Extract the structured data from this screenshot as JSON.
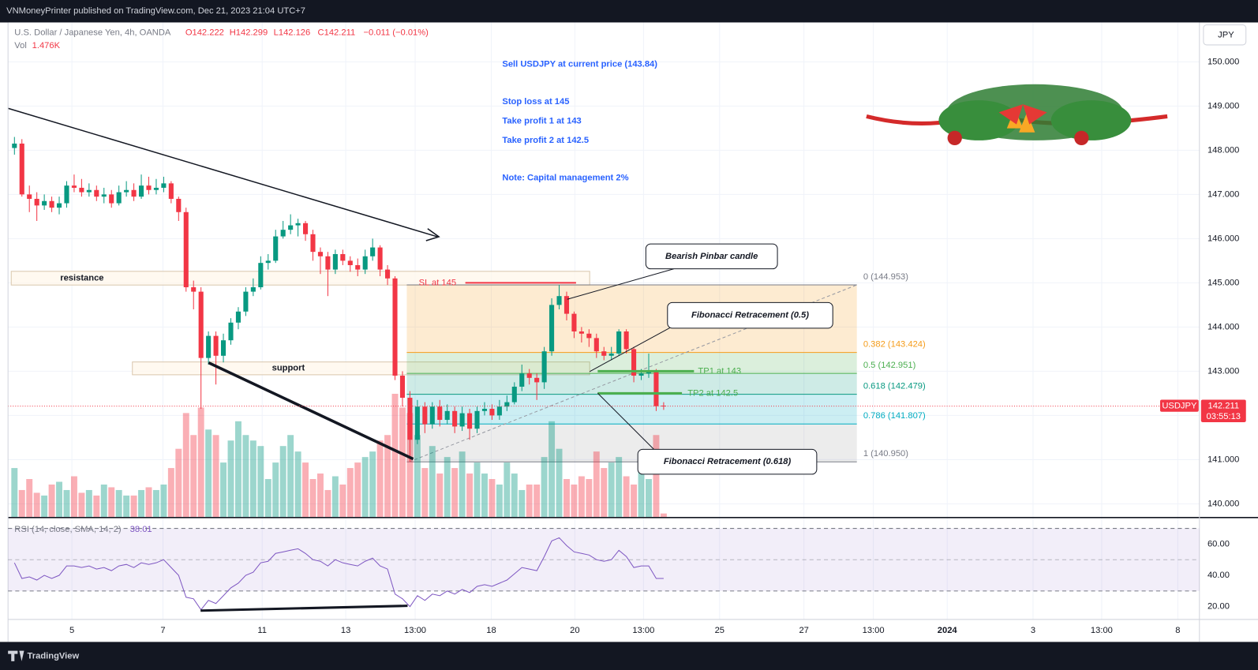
{
  "header": {
    "publisher": "VNMoneyPrinter published on TradingView.com, Dec 21, 2023 21:04 UTC+7"
  },
  "footer": {
    "brand": "TradingView"
  },
  "chart_data": {
    "type": "candlestick",
    "symbol_line": "U.S. Dollar / Japanese Yen, 4h, OANDA",
    "ohlc_labels": [
      "O142.222",
      "H142.299",
      "L142.126",
      "C142.211",
      "−0.011 (−0.01%)"
    ],
    "volume_title": "Vol",
    "currency": "JPY",
    "up_color": "#089981",
    "down_color": "#f23645",
    "grid": true,
    "ylim": [
      139.69,
      150.89
    ],
    "yticks": [
      {
        "value": 140,
        "label": "140.000"
      },
      {
        "value": 141,
        "label": "141.000"
      },
      {
        "value": 142,
        "label": "142.000"
      },
      {
        "value": 143,
        "label": "143.000"
      },
      {
        "value": 144,
        "label": "144.000"
      },
      {
        "value": 145,
        "label": "145.000"
      },
      {
        "value": 146,
        "label": "146.000"
      },
      {
        "value": 147,
        "label": "147.000"
      },
      {
        "value": 148,
        "label": "148.000"
      },
      {
        "value": 149,
        "label": "149.000"
      },
      {
        "value": 150,
        "label": "150.000"
      }
    ],
    "xlim": [
      -0.86,
      158.8
    ],
    "xticks": [
      {
        "value": 7.7,
        "label": "5"
      },
      {
        "value": 19.9,
        "label": "7"
      },
      {
        "value": 33.2,
        "label": "11"
      },
      {
        "value": 44.4,
        "label": "13"
      },
      {
        "value": 53.7,
        "label": "13:00"
      },
      {
        "value": 63.9,
        "label": "18"
      },
      {
        "value": 75.1,
        "label": "20"
      },
      {
        "value": 84.3,
        "label": "13:00"
      },
      {
        "value": 94.5,
        "label": "25"
      },
      {
        "value": 105.8,
        "label": "27"
      },
      {
        "value": 115.1,
        "label": "13:00"
      },
      {
        "value": 125,
        "label": "2024"
      },
      {
        "value": 136.5,
        "label": "3"
      },
      {
        "value": 145.7,
        "label": "13:00"
      },
      {
        "value": 155.9,
        "label": "8"
      }
    ],
    "candles": {
      "open": [
        148.05,
        148.15,
        147.0,
        146.9,
        146.75,
        146.85,
        146.7,
        146.8,
        147.2,
        147.15,
        147.05,
        147.1,
        146.95,
        147.0,
        146.8,
        147.05,
        147.1,
        146.95,
        147.2,
        147.1,
        147.15,
        147.25,
        146.9,
        146.6,
        144.9,
        144.8,
        143.3,
        143.8,
        143.35,
        143.7,
        144.1,
        144.35,
        144.8,
        144.9,
        145.45,
        145.5,
        146.05,
        146.2,
        146.3,
        146.35,
        146.1,
        145.7,
        145.6,
        145.3,
        145.65,
        145.5,
        145.4,
        145.3,
        145.6,
        145.8,
        145.3,
        145.1,
        142.9,
        142.4,
        141.45,
        142.2,
        141.8,
        142.2,
        141.9,
        142.1,
        141.75,
        142.05,
        141.7,
        142.1,
        142.15,
        142.0,
        142.2,
        142.3,
        142.65,
        142.95,
        142.85,
        142.75,
        143.45,
        144.5,
        144.7,
        144.3,
        143.9,
        143.85,
        143.75,
        143.45,
        143.35,
        143.4,
        143.9,
        143.5,
        142.9,
        142.95,
        143.0,
        142.222
      ],
      "high": [
        148.3,
        148.25,
        147.2,
        147.05,
        147.0,
        146.95,
        146.95,
        147.3,
        147.45,
        147.35,
        147.25,
        147.2,
        147.15,
        147.1,
        147.2,
        147.3,
        147.25,
        147.45,
        147.4,
        147.35,
        147.4,
        147.3,
        146.95,
        146.7,
        145.05,
        144.9,
        143.9,
        143.9,
        143.85,
        144.2,
        144.45,
        144.9,
        145.1,
        145.6,
        145.65,
        146.2,
        146.4,
        146.55,
        146.45,
        146.4,
        146.2,
        145.8,
        145.7,
        145.75,
        145.75,
        145.6,
        145.55,
        145.75,
        146.0,
        145.85,
        145.4,
        145.15,
        143.0,
        142.55,
        142.35,
        142.3,
        142.3,
        142.35,
        142.25,
        142.2,
        142.2,
        142.15,
        142.2,
        142.3,
        142.25,
        142.35,
        142.45,
        142.75,
        143.15,
        143.05,
        142.95,
        143.55,
        144.65,
        144.95,
        144.8,
        144.35,
        144.0,
        143.95,
        143.85,
        143.55,
        143.55,
        143.95,
        143.95,
        143.55,
        143.05,
        143.4,
        143.05,
        142.299
      ],
      "low": [
        147.9,
        146.95,
        146.6,
        146.4,
        146.65,
        146.6,
        146.55,
        146.7,
        147.05,
        146.95,
        146.95,
        146.85,
        146.8,
        146.7,
        146.75,
        146.95,
        146.85,
        146.9,
        147.0,
        147.0,
        147.05,
        146.8,
        146.4,
        144.8,
        144.4,
        142.15,
        143.15,
        142.7,
        143.2,
        143.6,
        143.95,
        144.25,
        144.7,
        144.85,
        145.3,
        145.45,
        146.0,
        146.1,
        146.05,
        145.95,
        145.5,
        145.2,
        144.7,
        145.2,
        145.4,
        145.25,
        145.15,
        145.2,
        145.5,
        145.15,
        144.95,
        142.8,
        142.2,
        140.95,
        141.35,
        141.6,
        141.7,
        141.75,
        141.8,
        141.6,
        141.65,
        141.45,
        141.6,
        142.0,
        141.9,
        141.9,
        142.1,
        142.25,
        142.55,
        142.7,
        142.35,
        142.6,
        143.35,
        144.4,
        144.15,
        143.75,
        143.65,
        143.55,
        143.3,
        143.25,
        143.25,
        143.35,
        143.4,
        142.75,
        142.8,
        142.85,
        142.1,
        142.126
      ],
      "close": [
        148.15,
        147.0,
        146.9,
        146.75,
        146.85,
        146.7,
        146.8,
        147.2,
        147.15,
        147.05,
        147.1,
        146.95,
        147.0,
        146.8,
        147.05,
        147.1,
        146.95,
        147.2,
        147.1,
        147.15,
        147.25,
        146.9,
        146.6,
        144.9,
        144.8,
        143.3,
        143.8,
        143.35,
        143.7,
        144.1,
        144.35,
        144.8,
        144.9,
        145.45,
        145.5,
        146.05,
        146.2,
        146.3,
        146.35,
        146.1,
        145.7,
        145.6,
        145.3,
        145.65,
        145.5,
        145.4,
        145.3,
        145.6,
        145.8,
        145.3,
        145.1,
        142.9,
        142.4,
        141.45,
        142.2,
        141.8,
        142.2,
        141.9,
        142.1,
        141.75,
        142.05,
        141.7,
        142.1,
        142.15,
        142.0,
        142.2,
        142.3,
        142.65,
        142.95,
        142.85,
        142.75,
        143.45,
        144.5,
        144.7,
        144.3,
        143.9,
        143.85,
        143.75,
        143.45,
        143.35,
        143.4,
        143.9,
        143.5,
        142.9,
        142.95,
        143.0,
        142.21,
        142.211
      ],
      "volume": [
        18,
        10,
        14,
        9,
        8,
        12,
        13,
        10,
        15,
        9,
        10,
        8,
        12,
        11,
        10,
        8,
        8,
        10,
        11,
        10,
        12,
        18,
        25,
        38,
        30,
        40,
        32,
        30,
        20,
        28,
        35,
        30,
        28,
        26,
        14,
        20,
        26,
        30,
        24,
        20,
        14,
        16,
        10,
        15,
        12,
        18,
        20,
        22,
        24,
        28,
        30,
        45,
        40,
        38,
        30,
        18,
        26,
        16,
        22,
        18,
        24,
        16,
        20,
        16,
        14,
        12,
        20,
        16,
        10,
        12,
        12,
        22,
        35,
        25,
        14,
        12,
        15,
        14,
        24,
        18,
        20,
        22,
        15,
        12,
        18,
        14,
        30,
        1.476
      ],
      "volume_value_labels": {
        "87": "1.476K"
      }
    },
    "last_price": {
      "symbol": "USDJPY",
      "value": 142.211,
      "label": "142.211",
      "countdown": "03:55:13"
    },
    "fibonacci": [
      {
        "ratio": 0,
        "price": 144.953,
        "label": "0 (144.953)",
        "color": "#787b86"
      },
      {
        "ratio": 0.382,
        "price": 143.424,
        "label": "0.382 (143.424)",
        "color": "#f59c1a"
      },
      {
        "ratio": 0.5,
        "price": 142.951,
        "label": "0.5 (142.951)",
        "color": "#4caf50"
      },
      {
        "ratio": 0.618,
        "price": 142.479,
        "label": "0.618 (142.479)",
        "color": "#089981"
      },
      {
        "ratio": 0.786,
        "price": 141.807,
        "label": "0.786 (141.807)",
        "color": "#00acc1"
      },
      {
        "ratio": 1,
        "price": 140.95,
        "label": "1 (140.950)",
        "color": "#787b86"
      }
    ],
    "levels": [
      {
        "label": "SL at 145",
        "price": 145,
        "color": "#f23645"
      },
      {
        "label": "TP1 at 143",
        "price": 143,
        "color": "#4caf50"
      },
      {
        "label": "TP2 at 142.5",
        "price": 142.5,
        "color": "#4caf50"
      }
    ],
    "zones": [
      {
        "label": "resistance",
        "top": 145.26,
        "bottom": 144.95
      },
      {
        "label": "support",
        "top": 143.21,
        "bottom": 142.92
      }
    ],
    "trade_plan": [
      "Sell USDJPY at current price (143.84)",
      "Stop loss at 145",
      "Take profit 1 at 143",
      "Take profit 2 at 142.5",
      "Note: Capital management 2%"
    ],
    "callouts": [
      "Bearish Pinbar candle",
      "Fibonacci Retracement (0.5)",
      "Fibonacci Retracement (0.618)"
    ],
    "rsi": {
      "title": "RSI (14, close, SMA, 14, 2)",
      "ylim": [
        11.8,
        75.4
      ],
      "band": [
        30,
        70
      ],
      "midline": 50,
      "color": "#7e57c2",
      "yticks": [
        {
          "value": 20,
          "label": "20.00"
        },
        {
          "value": 40,
          "label": "40.00"
        },
        {
          "value": 60,
          "label": "60.00"
        }
      ],
      "values": [
        48,
        38,
        39,
        37,
        40,
        38,
        40,
        46,
        46,
        45,
        46,
        44,
        45,
        43,
        46,
        47,
        45,
        48,
        47,
        48,
        50,
        45,
        40,
        26,
        25,
        18,
        24,
        22,
        27,
        32,
        35,
        40,
        42,
        48,
        49,
        54,
        55,
        56,
        57,
        54,
        50,
        49,
        46,
        50,
        48,
        47,
        46,
        49,
        51,
        46,
        44,
        28,
        25,
        20,
        27,
        24,
        28,
        27,
        30,
        28,
        31,
        29,
        33,
        34,
        33,
        35,
        37,
        41,
        45,
        44,
        43,
        52,
        62,
        64,
        59,
        55,
        54,
        53,
        50,
        49,
        50,
        56,
        52,
        45,
        46,
        46,
        38,
        38.01
      ]
    }
  }
}
